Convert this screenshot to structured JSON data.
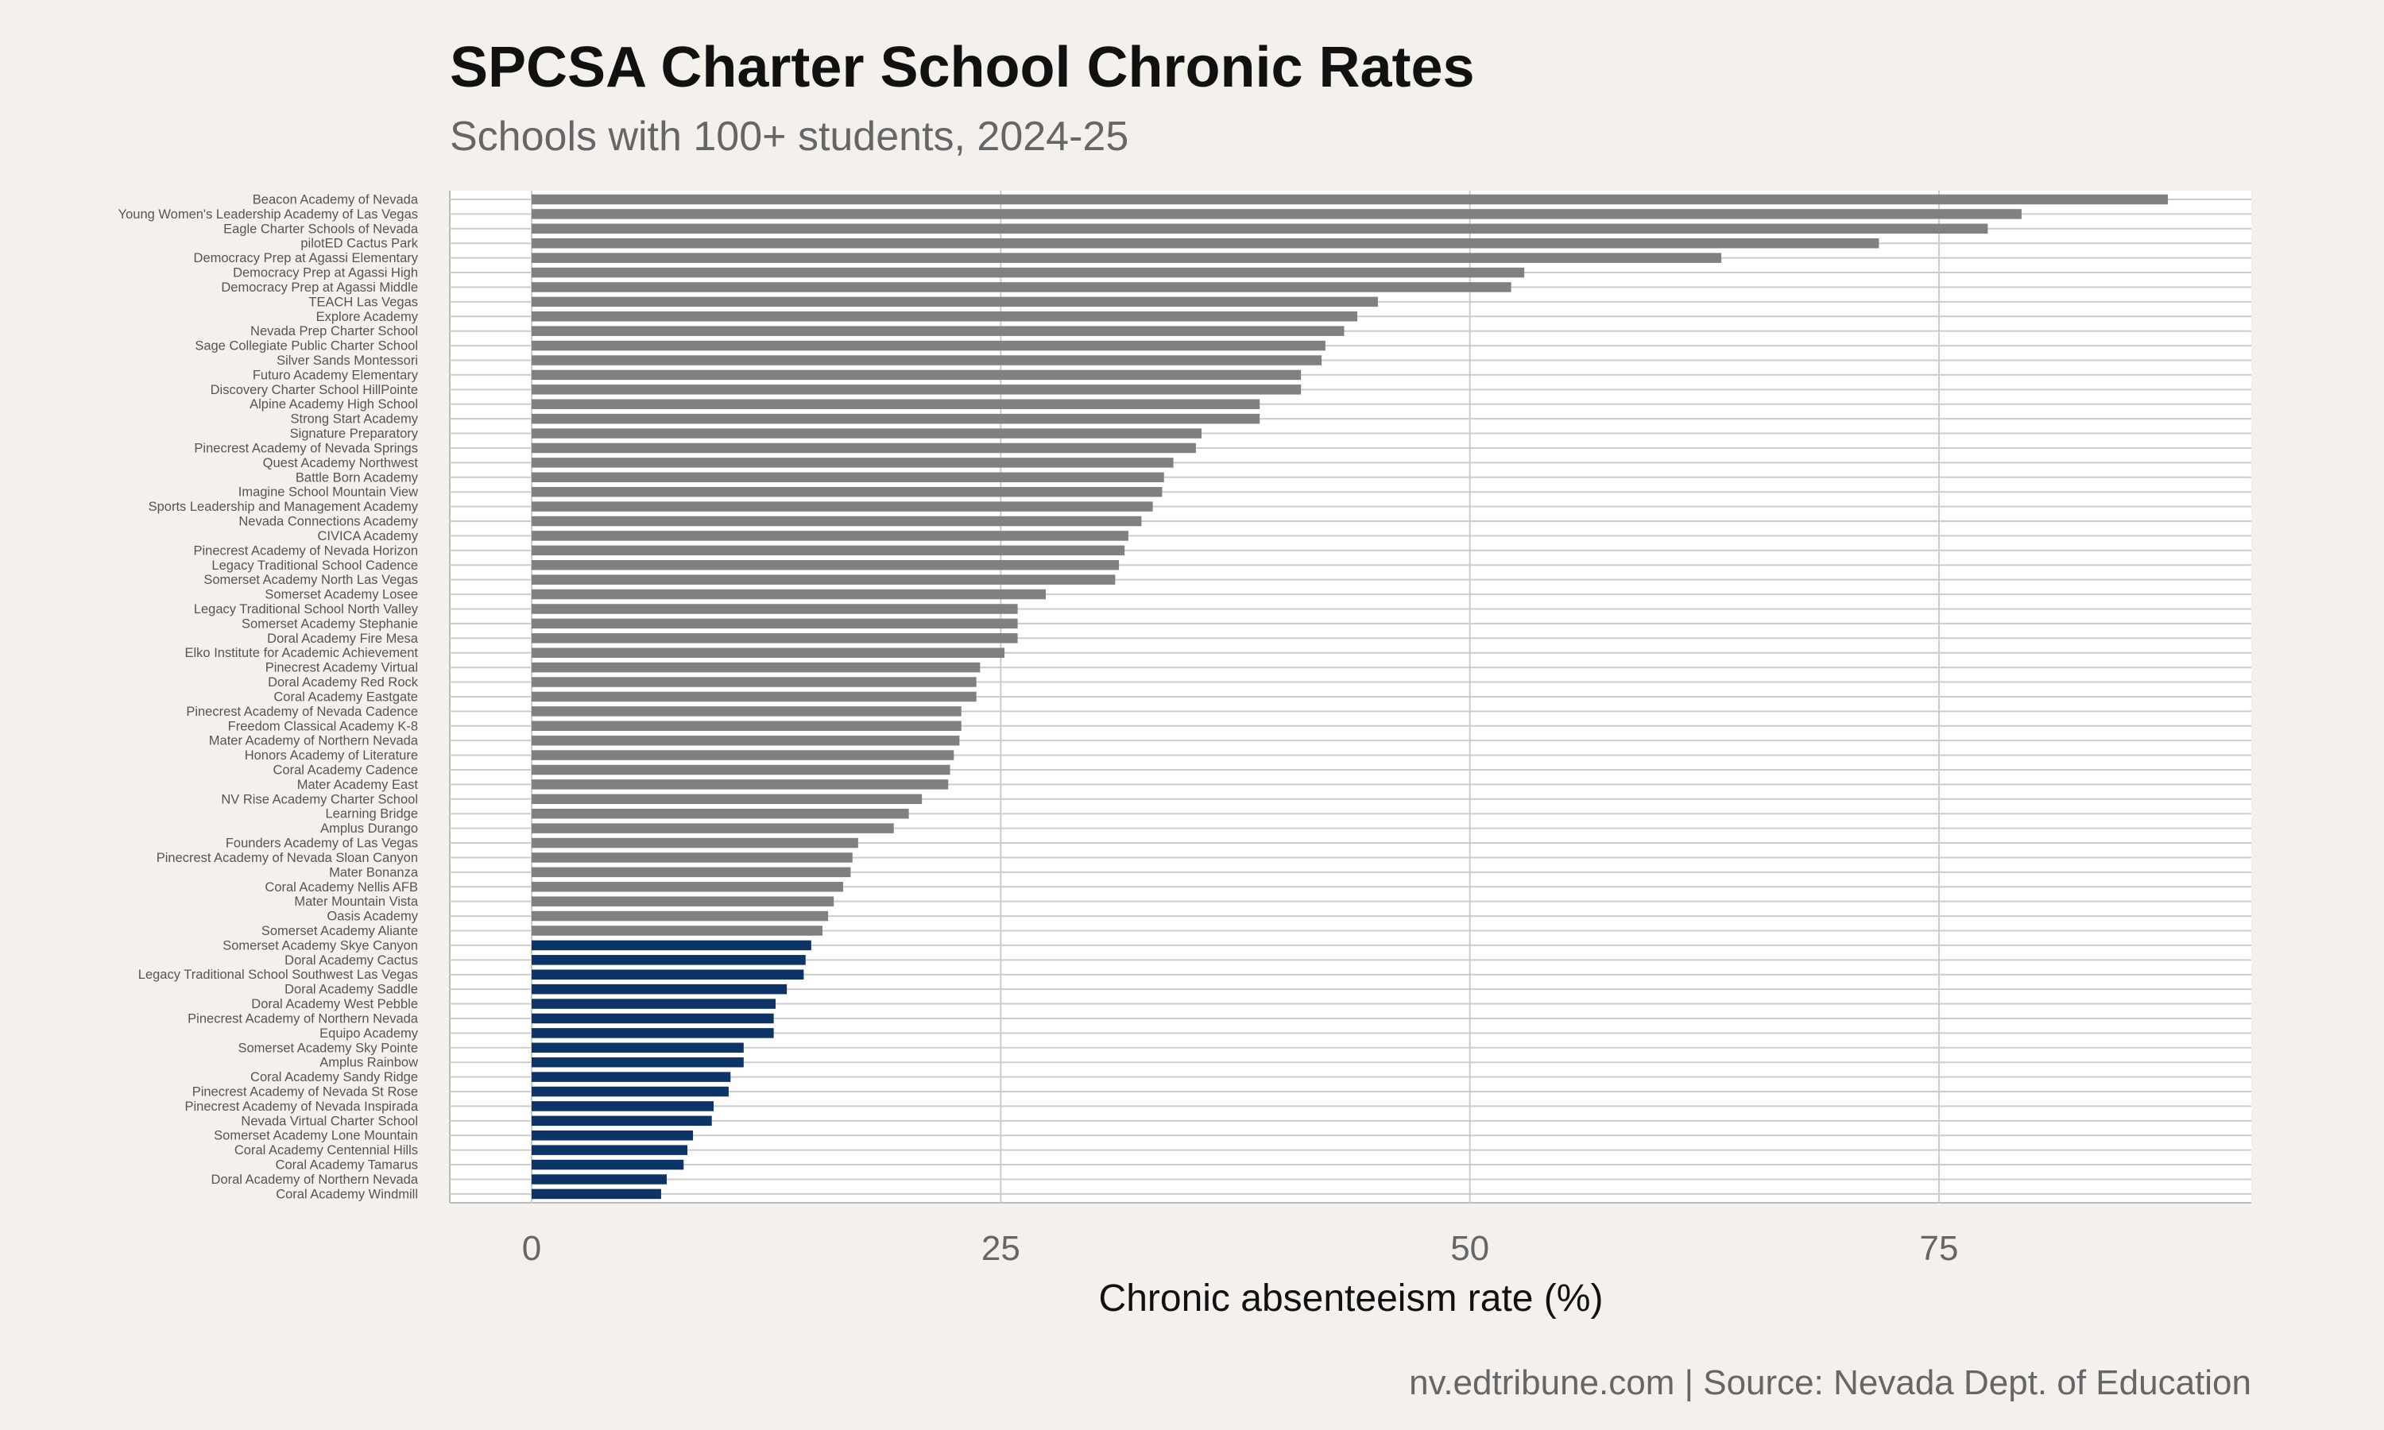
{
  "chart_data": {
    "type": "bar",
    "orientation": "horizontal",
    "title": "SPCSA Charter School Chronic Rates",
    "subtitle": "Schools with 100+ students, 2024-25",
    "xlabel": "Chronic absenteeism rate (%)",
    "ylabel": "",
    "caption": "nv.edtribune.com | Source: Nevada Dept. of Education",
    "xlim": [
      -4.3,
      91.5
    ],
    "xticks": [
      0,
      25,
      50,
      75
    ],
    "grid": true,
    "colors": {
      "above": "#808080",
      "below": "#0d3466",
      "background": "#f4f1ec",
      "panel": "#ffffff",
      "grid": "#cccccc"
    },
    "highlight_threshold": 15,
    "categories": [
      "Beacon Academy of Nevada",
      "Young Women's Leadership Academy of Las Vegas",
      "Eagle Charter Schools of Nevada",
      "pilotED Cactus Park",
      "Democracy Prep at Agassi Elementary",
      "Democracy Prep at Agassi High",
      "Democracy Prep at Agassi Middle",
      "TEACH Las Vegas",
      "Explore Academy",
      "Nevada Prep Charter School",
      "Sage Collegiate Public Charter School",
      "Silver Sands Montessori",
      "Futuro Academy Elementary",
      "Discovery Charter School HillPointe",
      "Alpine Academy High School",
      "Strong Start Academy",
      "Signature Preparatory",
      "Pinecrest Academy of Nevada Springs",
      "Quest Academy Northwest",
      "Battle Born Academy",
      "Imagine School Mountain View",
      "Sports Leadership and Management Academy",
      "Nevada Connections Academy",
      "CIVICA Academy",
      "Pinecrest Academy of Nevada Horizon",
      "Legacy Traditional School Cadence",
      "Somerset Academy North Las Vegas",
      "Somerset Academy Losee",
      "Legacy Traditional School North Valley",
      "Somerset Academy Stephanie",
      "Doral Academy Fire Mesa",
      "Elko Institute for Academic Achievement",
      "Pinecrest Academy Virtual",
      "Doral Academy Red Rock",
      "Coral Academy Eastgate",
      "Pinecrest Academy of Nevada Cadence",
      "Freedom Classical Academy K-8",
      "Mater Academy of Northern Nevada",
      "Honors Academy of Literature",
      "Coral Academy Cadence",
      "Mater Academy East",
      "NV Rise Academy Charter School",
      "Learning Bridge",
      "Amplus Durango",
      "Founders Academy of Las Vegas",
      "Pinecrest Academy of Nevada Sloan Canyon",
      "Mater Bonanza",
      "Coral Academy Nellis AFB",
      "Mater Mountain Vista",
      "Oasis Academy",
      "Somerset Academy Aliante",
      "Somerset Academy Skye Canyon",
      "Doral Academy Cactus",
      "Legacy Traditional School Southwest Las Vegas",
      "Doral Academy Saddle",
      "Doral Academy West Pebble",
      "Pinecrest Academy of Northern Nevada",
      "Equipo Academy",
      "Somerset Academy Sky Pointe",
      "Amplus Rainbow",
      "Coral Academy Sandy Ridge",
      "Pinecrest Academy of Nevada St Rose",
      "Pinecrest Academy of Nevada Inspirada",
      "Nevada Virtual Charter School",
      "Somerset Academy Lone Mountain",
      "Coral Academy Centennial Hills",
      "Coral Academy Tamarus",
      "Doral Academy of Northern Nevada",
      "Coral Academy Windmill"
    ],
    "values": [
      87.2,
      79.4,
      77.6,
      71.8,
      63.4,
      52.9,
      52.2,
      45.1,
      44.0,
      43.3,
      42.3,
      42.1,
      41.0,
      41.0,
      38.8,
      38.8,
      35.7,
      35.4,
      34.2,
      33.7,
      33.6,
      33.1,
      32.5,
      31.8,
      31.6,
      31.3,
      31.1,
      27.4,
      25.9,
      25.9,
      25.9,
      25.2,
      23.9,
      23.7,
      23.7,
      22.9,
      22.9,
      22.8,
      22.5,
      22.3,
      22.2,
      20.8,
      20.1,
      19.3,
      17.4,
      17.1,
      17.0,
      16.6,
      16.1,
      15.8,
      15.5,
      14.9,
      14.6,
      14.5,
      13.6,
      13.0,
      12.9,
      12.9,
      11.3,
      11.3,
      10.6,
      10.5,
      9.7,
      9.6,
      8.6,
      8.3,
      8.1,
      7.2,
      6.9
    ]
  }
}
